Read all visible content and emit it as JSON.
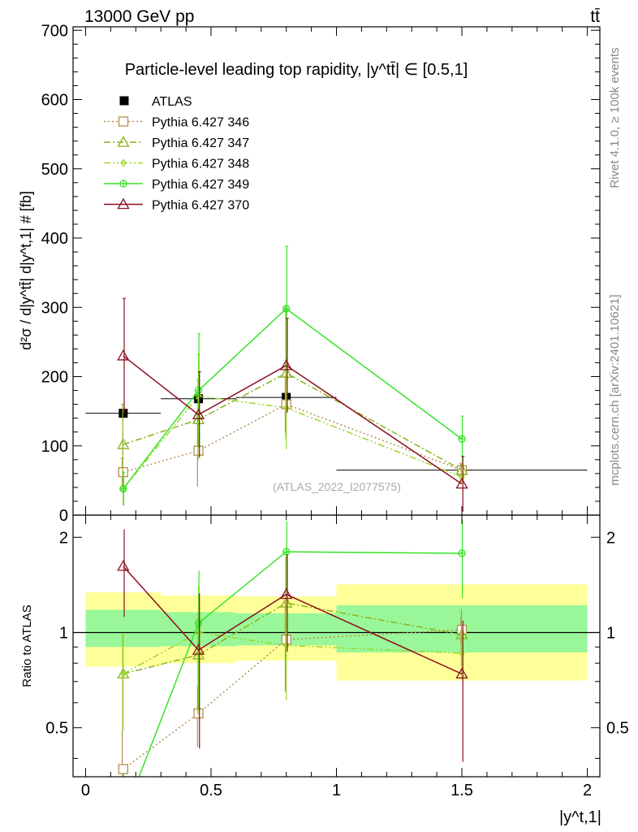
{
  "header": {
    "energy_label": "13000 GeV pp",
    "process_label": "tt̄",
    "rivet_label": "Rivet 4.1.0, ≥ 100k events",
    "mcplots_label": "mcplots.cern.ch [arXiv:2401.10621]",
    "analysis_id": "(ATLAS_2022_I2077575)"
  },
  "chart_data": [
    {
      "type": "line",
      "panel": "main",
      "title": "Particle-level leading top rapidity, |y^tt̄| ∈ [0.5,1]",
      "ylabel": "d²σ / d|y^tt̄| d|y^t,1| # [fb]",
      "xlim": [
        -0.05,
        2.05
      ],
      "ylim": [
        0,
        705
      ],
      "yticks": [
        0,
        100,
        200,
        300,
        400,
        500,
        600,
        700
      ],
      "legend_position": "top-left",
      "data": {
        "name": "ATLAS",
        "x": [
          0.15,
          0.45,
          0.8,
          1.5
        ],
        "y": [
          147,
          168,
          170,
          65
        ],
        "xerr": [
          0.15,
          0.15,
          0.2,
          0.5
        ]
      },
      "series": [
        {
          "name": "Pythia 6.427 346",
          "color": "#b58f4d",
          "marker": "square",
          "dash": "dotted",
          "x": [
            0.15,
            0.45,
            0.8,
            1.5
          ],
          "y": [
            62,
            93,
            160,
            65
          ],
          "err": [
            20,
            52,
            40,
            10
          ]
        },
        {
          "name": "Pythia 6.427 347",
          "color": "#8ab31d",
          "marker": "triangle",
          "dash": "dashdot",
          "x": [
            0.15,
            0.45,
            0.8,
            1.5
          ],
          "y": [
            102,
            138,
            205,
            65
          ],
          "err": [
            58,
            58,
            95,
            8
          ]
        },
        {
          "name": "Pythia 6.427 348",
          "color": "#9cd62d",
          "marker": "diamond",
          "dash": "dashdotdot",
          "x": [
            0.15,
            0.45,
            0.8,
            1.5
          ],
          "y": [
            38,
            172,
            155,
            55
          ],
          "err": [
            24,
            60,
            60,
            8
          ]
        },
        {
          "name": "Pythia 6.427 349",
          "color": "#34e424",
          "marker": "circle-plus",
          "dash": "solid",
          "x": [
            0.15,
            0.45,
            0.8,
            1.5
          ],
          "y": [
            38,
            180,
            298,
            110
          ],
          "err": [
            24,
            82,
            90,
            33
          ]
        },
        {
          "name": "Pythia 6.427 370",
          "color": "#8b0f1f",
          "marker": "triangle",
          "dash": "solid",
          "x": [
            0.15,
            0.45,
            0.8,
            1.5
          ],
          "y": [
            230,
            145,
            216,
            45
          ],
          "err": [
            83,
            62,
            68,
            40
          ]
        }
      ]
    },
    {
      "type": "line",
      "panel": "ratio",
      "ylabel": "Ratio to ATLAS",
      "xlabel": "|y^t,1|",
      "xlim": [
        -0.05,
        2.05
      ],
      "ylim": [
        0.35,
        2.35
      ],
      "yticks": [
        0.5,
        1,
        2
      ],
      "xticks": [
        0,
        0.5,
        1,
        1.5,
        2
      ],
      "bands": [
        {
          "x": [
            0,
            0.3
          ],
          "inner": [
            0.9,
            1.18
          ],
          "outer": [
            0.78,
            1.34
          ]
        },
        {
          "x": [
            0.3,
            0.6
          ],
          "inner": [
            0.905,
            1.16
          ],
          "outer": [
            0.8,
            1.31
          ]
        },
        {
          "x": [
            0.6,
            1.0
          ],
          "inner": [
            0.91,
            1.15
          ],
          "outer": [
            0.815,
            1.3
          ]
        },
        {
          "x": [
            1.0,
            2.0
          ],
          "inner": [
            0.865,
            1.22
          ],
          "outer": [
            0.705,
            1.42
          ]
        }
      ],
      "series": [
        {
          "name": "Pythia 6.427 346",
          "x": [
            0.15,
            0.45,
            0.8,
            1.5
          ],
          "y": [
            0.37,
            0.555,
            0.95,
            1.02
          ],
          "err": [
            0.12,
            0.12,
            0.3,
            0.1
          ]
        },
        {
          "name": "Pythia 6.427 347",
          "x": [
            0.15,
            0.45,
            0.8,
            1.5
          ],
          "y": [
            0.74,
            0.85,
            1.24,
            0.985
          ],
          "err": [
            0.25,
            0.3,
            0.5,
            0.2
          ]
        },
        {
          "name": "Pythia 6.427 348",
          "x": [
            0.15,
            0.45,
            0.8,
            1.5
          ],
          "y": [
            0.74,
            1.0,
            0.91,
            0.86
          ],
          "err": [
            0.25,
            0.4,
            0.3,
            0.15
          ]
        },
        {
          "name": "Pythia 6.427 349",
          "x": [
            0.15,
            0.45,
            0.8,
            1.5
          ],
          "y": [
            0.26,
            1.07,
            1.8,
            1.78
          ],
          "err": [
            0.1,
            0.5,
            0.45,
            0.5
          ]
        },
        {
          "name": "Pythia 6.427 370",
          "x": [
            0.15,
            0.45,
            0.8,
            1.5
          ],
          "y": [
            1.62,
            0.88,
            1.32,
            0.74
          ],
          "err": [
            0.5,
            0.45,
            0.45,
            0.35
          ]
        }
      ]
    }
  ]
}
